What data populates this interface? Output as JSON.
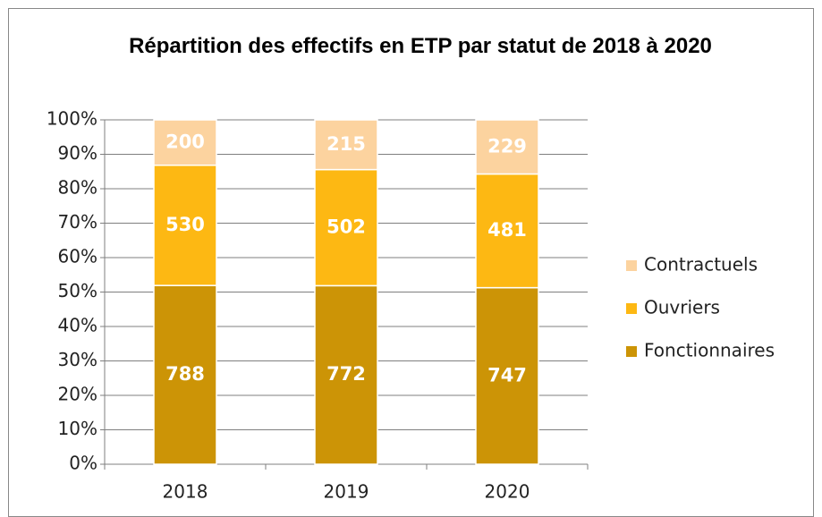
{
  "chart_data": {
    "type": "bar100",
    "title": "Répartition des effectifs en ETP par statut de 2018 à 2020",
    "categories": [
      "2018",
      "2019",
      "2020"
    ],
    "series": [
      {
        "name": "Fonctionnaires",
        "color": "#cc9406",
        "values": [
          788,
          772,
          747
        ]
      },
      {
        "name": "Ouvriers",
        "color": "#fdb813",
        "values": [
          530,
          502,
          481
        ]
      },
      {
        "name": "Contractuels",
        "color": "#fcd39f",
        "values": [
          200,
          215,
          229
        ]
      }
    ],
    "ylim": [
      0,
      100
    ],
    "yticks": [
      {
        "value": 0,
        "label": "0%"
      },
      {
        "value": 10,
        "label": "10%"
      },
      {
        "value": 20,
        "label": "20%"
      },
      {
        "value": 30,
        "label": "30%"
      },
      {
        "value": 40,
        "label": "40%"
      },
      {
        "value": 50,
        "label": "50%"
      },
      {
        "value": 60,
        "label": "60%"
      },
      {
        "value": 70,
        "label": "70%"
      },
      {
        "value": 80,
        "label": "80%"
      },
      {
        "value": 90,
        "label": "90%"
      },
      {
        "value": 100,
        "label": "100%"
      }
    ],
    "grid": true,
    "legend": "right"
  }
}
